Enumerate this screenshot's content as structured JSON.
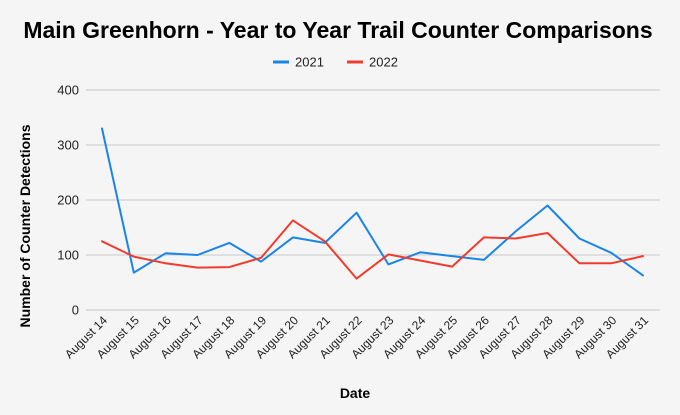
{
  "chart_data": {
    "type": "line",
    "title": "Main Greenhorn - Year to Year Trail Counter Comparisons",
    "xlabel": "Date",
    "ylabel": "Number of Counter Detections",
    "ylim": [
      0,
      400
    ],
    "yticks": [
      0,
      100,
      200,
      300,
      400
    ],
    "grid": true,
    "legend_position": "top",
    "categories": [
      "August 14",
      "August 15",
      "August 16",
      "August 17",
      "August 18",
      "August 19",
      "August 20",
      "August 21",
      "August 22",
      "August 23",
      "August 24",
      "August 25",
      "August 26",
      "August 27",
      "August 28",
      "August 29",
      "August 30",
      "August 31"
    ],
    "series": [
      {
        "name": "2021",
        "color": "#1a85e6",
        "values": [
          330,
          68,
          103,
          100,
          122,
          88,
          132,
          122,
          177,
          83,
          105,
          98,
          91,
          143,
          190,
          130,
          104,
          63
        ]
      },
      {
        "name": "2022",
        "color": "#f03c2e",
        "values": [
          125,
          97,
          85,
          77,
          78,
          95,
          163,
          125,
          57,
          101,
          90,
          79,
          132,
          130,
          140,
          85,
          85,
          98
        ]
      }
    ]
  }
}
